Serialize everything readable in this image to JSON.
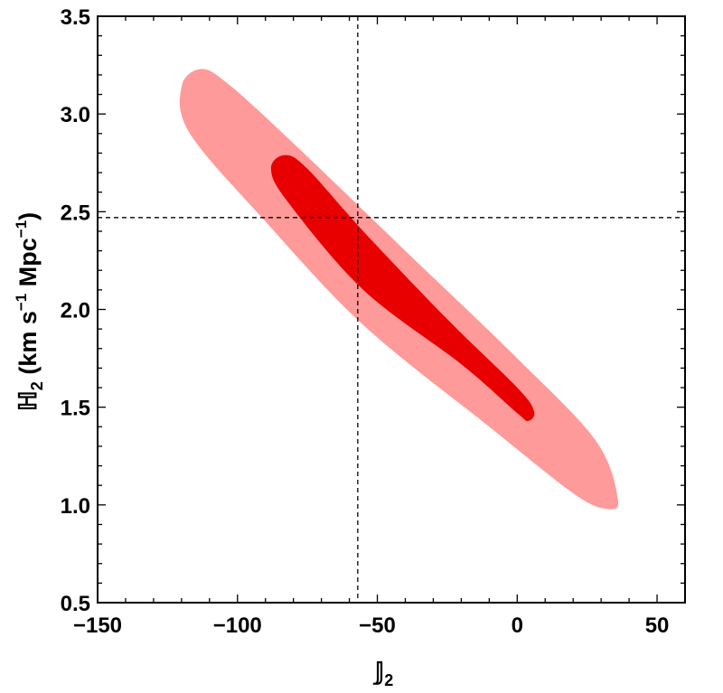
{
  "chart_data": {
    "type": "contour",
    "xlabel": "𝕁",
    "xlabel_sub": "2",
    "ylabel": "ℍ",
    "ylabel_sub": "2",
    "ylabel_unit_open": " (km s",
    "ylabel_unit_exp1": "−1",
    "ylabel_unit_mid": " Mpc",
    "ylabel_unit_exp2": "−1",
    "ylabel_unit_close": ")",
    "xlim": [
      -150,
      60
    ],
    "ylim": [
      0.5,
      3.5
    ],
    "x_ticks": [
      -150,
      -100,
      -50,
      0,
      50
    ],
    "x_tick_labels": [
      "−150",
      "−100",
      "−50",
      "0",
      "50"
    ],
    "y_ticks": [
      0.5,
      1.0,
      1.5,
      2.0,
      2.5,
      3.0,
      3.5
    ],
    "y_tick_labels": [
      "0.5",
      "1.0",
      "1.5",
      "2.0",
      "2.5",
      "3.0",
      "3.5"
    ],
    "reference_lines": {
      "x": -57,
      "y": 2.47
    },
    "contours": [
      {
        "level": "outer",
        "color": "#ff9a9a",
        "polygon": [
          [
            -113,
            3.23
          ],
          [
            -120,
            3.14
          ],
          [
            -117,
            2.9
          ],
          [
            -90,
            2.45
          ],
          [
            -55,
            1.92
          ],
          [
            -10,
            1.4
          ],
          [
            20,
            1.06
          ],
          [
            32,
            0.98
          ],
          [
            36,
            1.03
          ],
          [
            28,
            1.33
          ],
          [
            0,
            1.75
          ],
          [
            -40,
            2.3
          ],
          [
            -80,
            2.85
          ],
          [
            -103,
            3.15
          ]
        ]
      },
      {
        "level": "inner",
        "color": "#e80000",
        "polygon": [
          [
            -83,
            2.79
          ],
          [
            -88,
            2.72
          ],
          [
            -82,
            2.55
          ],
          [
            -55,
            2.1
          ],
          [
            -20,
            1.72
          ],
          [
            0,
            1.47
          ],
          [
            4,
            1.43
          ],
          [
            6,
            1.48
          ],
          [
            0,
            1.6
          ],
          [
            -25,
            1.95
          ],
          [
            -55,
            2.4
          ],
          [
            -75,
            2.72
          ]
        ]
      }
    ]
  }
}
